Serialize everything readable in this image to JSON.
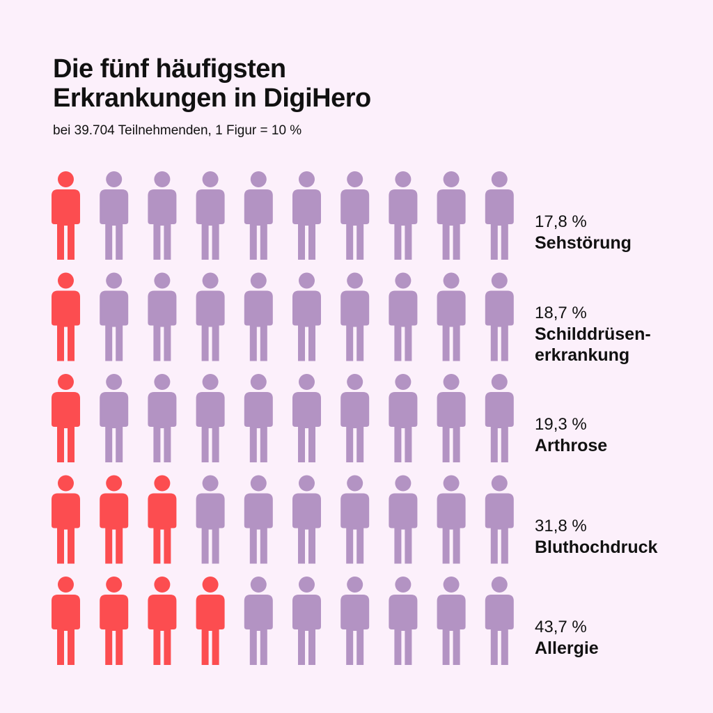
{
  "title_line1": "Die fünf häufigsten",
  "title_line2": "Erkrankungen in DigiHero",
  "subtitle": "bei 39.704 Teilnehmenden, 1 Figur = 10 %",
  "colors": {
    "background": "#fcf0fb",
    "highlight": "#fc4d50",
    "base": "#b393c3"
  },
  "chart_data": {
    "type": "pictogram",
    "unit_percent_per_figure": 10,
    "figures_per_row": 10,
    "rows": [
      {
        "name": "Sehstörung",
        "name_lines": [
          "Sehstörung"
        ],
        "value": 17.8,
        "value_label": "17,8 %"
      },
      {
        "name": "Schilddrüsenerkrankung",
        "name_lines": [
          "Schilddrüsen-",
          "erkrankung"
        ],
        "value": 18.7,
        "value_label": "18,7 %"
      },
      {
        "name": "Arthrose",
        "name_lines": [
          "Arthrose"
        ],
        "value": 19.3,
        "value_label": "19,3 %"
      },
      {
        "name": "Bluthochdruck",
        "name_lines": [
          "Bluthochdruck"
        ],
        "value": 31.8,
        "value_label": "31,8 %"
      },
      {
        "name": "Allergie",
        "name_lines": [
          "Allergie"
        ],
        "value": 43.7,
        "value_label": "43,7 %"
      }
    ]
  }
}
